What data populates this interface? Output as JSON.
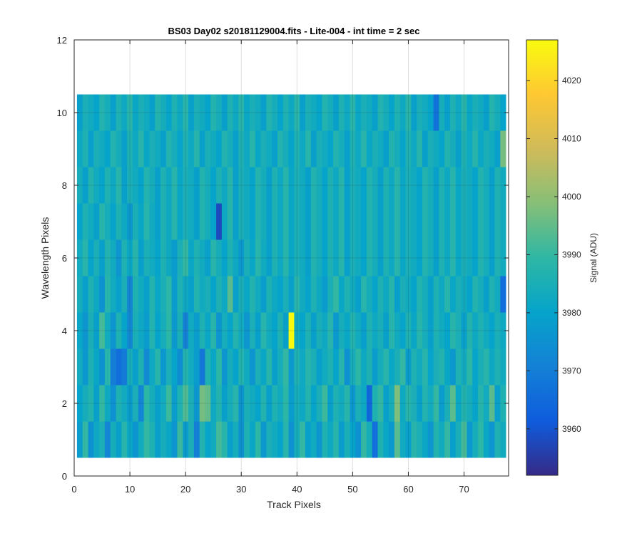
{
  "chart_data": {
    "type": "heatmap",
    "title": "BS03 Day02  s20181129004.fits - Lite-004 - int time = 2 sec",
    "xlabel": "Track Pixels",
    "ylabel": "Wavelength Pixels",
    "xlim": [
      0,
      78
    ],
    "ylim": [
      0,
      12
    ],
    "x_ticks": [
      0,
      10,
      20,
      30,
      40,
      50,
      60,
      70
    ],
    "y_ticks": [
      0,
      2,
      4,
      6,
      8,
      10,
      12
    ],
    "grid": true,
    "columns": [
      1,
      77
    ],
    "rows": [
      1,
      10
    ],
    "colorbar": {
      "label": "Signal (ADU)",
      "limits": [
        3952,
        4027
      ],
      "ticks": [
        3960,
        3970,
        3980,
        3990,
        4000,
        4010,
        4020
      ],
      "colormap": "parula",
      "colormap_stops": [
        "#352a87",
        "#0f5cdd",
        "#1481d6",
        "#06a4ca",
        "#2eb7a4",
        "#87bf77",
        "#d1bb59",
        "#fec832",
        "#f9fb0e"
      ]
    },
    "values": [
      [
        3978,
        3990,
        3975,
        3982,
        3985,
        3972,
        3984,
        3979,
        3988,
        3981,
        3976,
        3983,
        3990,
        3986,
        3979,
        3984,
        3981,
        3976,
        3991,
        3978,
        3985,
        3970,
        3987,
        3980,
        3983,
        3992,
        3988,
        3979,
        3984,
        3975,
        3986,
        3981,
        3989,
        3977,
        3985,
        3983,
        3980,
        3988,
        3975,
        3984,
        3990,
        3979,
        3983,
        3976,
        3986,
        3982,
        3988,
        3978,
        3985,
        3980,
        3975,
        3990,
        3984,
        3966,
        3986,
        3981,
        3977,
        3994,
        3983,
        3979,
        3988,
        3985,
        3981,
        3976,
        3987,
        3983,
        3990,
        3979,
        3985,
        3992,
        3977,
        3984,
        3989,
        3981,
        3976,
        3986,
        3983
      ],
      [
        3980,
        3984,
        3987,
        3979,
        3990,
        3982,
        3975,
        3986,
        3983,
        3978,
        3985,
        3972,
        3989,
        3984,
        3979,
        3983,
        3991,
        3978,
        3986,
        3993,
        3985,
        3976,
        3997,
        3995,
        3982,
        3987,
        3979,
        3984,
        3988,
        3976,
        3985,
        3983,
        3980,
        3987,
        3979,
        3986,
        3983,
        3989,
        3978,
        3984,
        3982,
        3987,
        3980,
        3985,
        3991,
        3979,
        3986,
        3983,
        3988,
        3977,
        3985,
        3982,
        3964,
        3986,
        3990,
        3979,
        3984,
        3998,
        3982,
        3988,
        3985,
        3979,
        3987,
        3983,
        3990,
        3978,
        3985,
        3994,
        3981,
        3987,
        3984,
        3980,
        3988,
        3983,
        3994,
        3979,
        3986
      ],
      [
        3983,
        3977,
        3986,
        3981,
        3975,
        3988,
        3970,
        3966,
        3969,
        3984,
        3979,
        3986,
        3973,
        3982,
        3988,
        3977,
        3985,
        3980,
        3974,
        3987,
        3983,
        3978,
        3968,
        3986,
        3981,
        3989,
        3976,
        3984,
        3980,
        3987,
        3983,
        3976,
        3985,
        3981,
        3988,
        3979,
        3984,
        3990,
        3977,
        3986,
        3982,
        3988,
        3985,
        3979,
        3983,
        3986,
        3980,
        3988,
        3975,
        3984,
        3989,
        3982,
        3986,
        3978,
        3984,
        3988,
        3981,
        3985,
        3990,
        3978,
        3986,
        3983,
        3988,
        3980,
        3985,
        3987,
        3981,
        3977,
        3986,
        3983,
        3989,
        3980,
        3985,
        3988,
        3982,
        3986,
        3983
      ],
      [
        3981,
        3976,
        3985,
        3979,
        3992,
        3983,
        3976,
        3986,
        3980,
        3973,
        3985,
        3982,
        3978,
        3987,
        3980,
        3984,
        3989,
        3977,
        3985,
        3971,
        3983,
        3978,
        3986,
        3981,
        3988,
        3976,
        3984,
        3980,
        3987,
        3983,
        3976,
        3985,
        3979,
        3988,
        3983,
        3980,
        3986,
        3979,
        4027,
        3983,
        3980,
        3986,
        3979,
        3985,
        3982,
        3988,
        3977,
        3984,
        3981,
        3987,
        3983,
        3979,
        3986,
        3982,
        3985,
        3979,
        3988,
        3983,
        3980,
        3986,
        3981,
        3988,
        3984,
        3979,
        3986,
        3983,
        3980,
        3988,
        3985,
        3979,
        3987,
        3982,
        3986,
        3983,
        3980,
        3985,
        3982
      ],
      [
        3984,
        3979,
        3986,
        3982,
        3975,
        3988,
        3983,
        3979,
        3985,
        3972,
        3986,
        3983,
        3979,
        3987,
        3981,
        3985,
        3989,
        3978,
        3986,
        3982,
        3979,
        3987,
        3983,
        3985,
        3980,
        3986,
        3982,
        3994,
        3979,
        3985,
        3981,
        3987,
        3983,
        3978,
        3986,
        3982,
        3980,
        3985,
        3979,
        3988,
        3983,
        3980,
        3986,
        3982,
        3978,
        3985,
        3990,
        3981,
        3986,
        3983,
        3979,
        3988,
        3984,
        3980,
        3986,
        3982,
        3988,
        3979,
        3985,
        3983,
        3980,
        3987,
        3984,
        3979,
        3986,
        3982,
        3988,
        3981,
        3985,
        3983,
        3980,
        3987,
        3984,
        3979,
        3986,
        3983,
        3966
      ],
      [
        3983,
        3988,
        3980,
        3985,
        3979,
        3987,
        3983,
        3976,
        3986,
        3981,
        3988,
        3979,
        3985,
        3983,
        3980,
        3986,
        3982,
        3978,
        3985,
        3990,
        3981,
        3986,
        3983,
        3979,
        3988,
        3984,
        3980,
        3986,
        3982,
        3977,
        3985,
        3981,
        3988,
        3983,
        3979,
        3986,
        3982,
        3988,
        3981,
        3985,
        3983,
        3979,
        3987,
        3984,
        3980,
        3986,
        3982,
        3988,
        3979,
        3985,
        3983,
        3980,
        3987,
        3984,
        3979,
        3986,
        3982,
        3988,
        3981,
        3985,
        3983,
        3980,
        3987,
        3984,
        3979,
        3986,
        3982,
        3988,
        3981,
        3985,
        3983,
        3980,
        3987,
        3984,
        3979,
        3986,
        3983
      ],
      [
        3980,
        3986,
        3983,
        3979,
        3988,
        3984,
        3980,
        3986,
        3982,
        3977,
        3985,
        3981,
        3988,
        3983,
        3979,
        3986,
        3982,
        3988,
        3981,
        3985,
        3983,
        3979,
        3987,
        3984,
        3980,
        3958,
        3982,
        3988,
        3979,
        3985,
        3983,
        3980,
        3987,
        3984,
        3979,
        3986,
        3982,
        3988,
        3981,
        3985,
        3983,
        3979,
        3987,
        3984,
        3980,
        3986,
        3982,
        3988,
        3979,
        3985,
        3983,
        3980,
        3987,
        3984,
        3979,
        3986,
        3982,
        3988,
        3981,
        3985,
        3983,
        3980,
        3987,
        3984,
        3979,
        3986,
        3982,
        3988,
        3981,
        3985,
        3983,
        3980,
        3987,
        3984,
        3979,
        3986,
        3983
      ],
      [
        3984,
        3979,
        3987,
        3983,
        3980,
        3986,
        3982,
        3988,
        3979,
        3985,
        3983,
        3980,
        3987,
        3984,
        3979,
        3986,
        3982,
        3988,
        3981,
        3985,
        3983,
        3979,
        3987,
        3984,
        3980,
        3986,
        3982,
        3988,
        3979,
        3985,
        3983,
        3980,
        3987,
        3984,
        3979,
        3986,
        3982,
        3988,
        3981,
        3985,
        3983,
        3979,
        3987,
        3984,
        3980,
        3986,
        3982,
        3988,
        3979,
        3985,
        3983,
        3980,
        3987,
        3984,
        3979,
        3986,
        3982,
        3988,
        3981,
        3985,
        3983,
        3980,
        3987,
        3984,
        3979,
        3986,
        3982,
        3988,
        3981,
        3985,
        3983,
        3980,
        3987,
        3984,
        3979,
        3986,
        3983
      ],
      [
        3982,
        3986,
        3979,
        3985,
        3983,
        3980,
        3987,
        3984,
        3979,
        3986,
        3982,
        3988,
        3981,
        3985,
        3983,
        3979,
        3987,
        3984,
        3980,
        3986,
        3982,
        3988,
        3979,
        3985,
        3983,
        3980,
        3987,
        3984,
        3979,
        3986,
        3982,
        3988,
        3981,
        3985,
        3983,
        3979,
        3987,
        3984,
        3980,
        3986,
        3982,
        3988,
        3979,
        3985,
        3983,
        3980,
        3987,
        3984,
        3979,
        3986,
        3982,
        3988,
        3981,
        3985,
        3983,
        3979,
        3987,
        3984,
        3980,
        3986,
        3982,
        3988,
        3979,
        3985,
        3983,
        3980,
        3987,
        3984,
        3979,
        3986,
        3982,
        3988,
        3981,
        3985,
        3983,
        3979,
        3997
      ],
      [
        3979,
        3985,
        3983,
        3980,
        3987,
        3984,
        3979,
        3986,
        3982,
        3988,
        3981,
        3985,
        3983,
        3979,
        3987,
        3984,
        3980,
        3986,
        3982,
        3988,
        3979,
        3985,
        3983,
        3980,
        3987,
        3984,
        3979,
        3986,
        3982,
        3988,
        3981,
        3985,
        3983,
        3979,
        3987,
        3984,
        3980,
        3986,
        3982,
        3988,
        3979,
        3985,
        3983,
        3980,
        3987,
        3984,
        3979,
        3986,
        3982,
        3988,
        3981,
        3985,
        3983,
        3979,
        3987,
        3984,
        3980,
        3986,
        3982,
        3988,
        3979,
        3985,
        3983,
        3980,
        3967,
        3984,
        3979,
        3986,
        3982,
        3988,
        3981,
        3985,
        3983,
        3979,
        3987,
        3984,
        3980
      ]
    ]
  }
}
